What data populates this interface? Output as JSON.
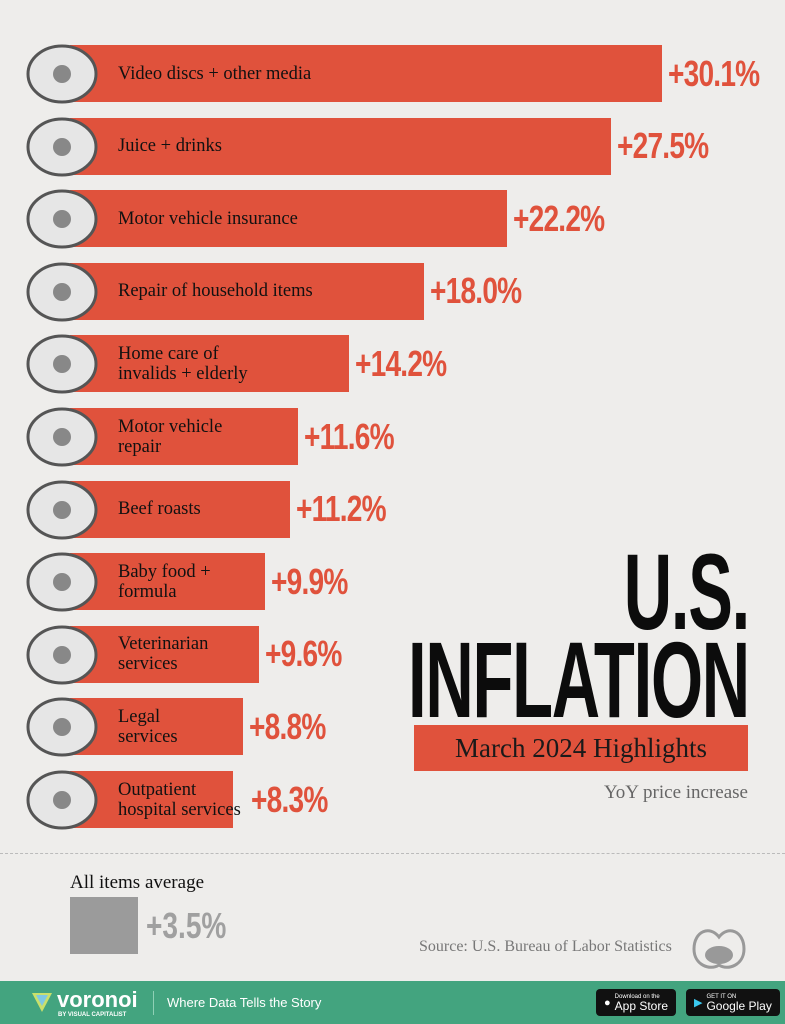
{
  "chart_data": {
    "type": "bar",
    "orientation": "horizontal",
    "title": "U.S. INFLATION",
    "subtitle": "March 2024 Highlights",
    "note": "YoY price increase",
    "categories": [
      "Video discs + other media",
      "Juice + drinks",
      "Motor vehicle insurance",
      "Repair of household items",
      "Home care of invalids + elderly",
      "Motor vehicle repair",
      "Beef roasts",
      "Baby food + formula",
      "Veterinarian services",
      "Legal services",
      "Outpatient hospital services"
    ],
    "label_lines": [
      [
        "Video discs + other media"
      ],
      [
        "Juice + drinks"
      ],
      [
        "Motor vehicle insurance"
      ],
      [
        "Repair of household items"
      ],
      [
        "Home care of",
        "invalids + elderly"
      ],
      [
        "Motor vehicle",
        "repair"
      ],
      [
        "Beef roasts"
      ],
      [
        "Baby food +",
        "formula"
      ],
      [
        "Veterinarian",
        "services"
      ],
      [
        "Legal",
        "services"
      ],
      [
        "Outpatient",
        "hospital services"
      ]
    ],
    "values": [
      30.1,
      27.5,
      22.2,
      18.0,
      14.2,
      11.6,
      11.2,
      9.9,
      9.6,
      8.8,
      8.3
    ],
    "value_labels": [
      "+30.1%",
      "+27.5%",
      "+22.2%",
      "+18.0%",
      "+14.2%",
      "+11.6%",
      "+11.2%",
      "+9.9%",
      "+9.6%",
      "+8.8%",
      "+8.3%"
    ],
    "icons": [
      "disc-icon",
      "can-icon",
      "car-icon",
      "washing-machine-icon",
      "walker-icon",
      "tire-icon",
      "beef-icon",
      "baby-bottle-icon",
      "dog-icon",
      "gavel-icon",
      "blood-pressure-icon"
    ],
    "average": {
      "label": "All items average",
      "value": 3.5,
      "value_label": "+3.5%"
    },
    "colors": {
      "bar": "#e0523c",
      "average": "#9b9b9b",
      "background": "#eeedeb"
    }
  },
  "title_lines": [
    "U.S.",
    "INFLATION"
  ],
  "source": "Source: U.S. Bureau of Labor Statistics",
  "footer": {
    "brand": "voronoi",
    "brand_sub": "BY VISUAL CAPITALIST",
    "tagline": "Where Data Tells the Story",
    "app_store_small": "Download on the",
    "app_store": "App Store",
    "google_small": "GET IT ON",
    "google": "Google Play",
    "color": "#43a47f"
  }
}
